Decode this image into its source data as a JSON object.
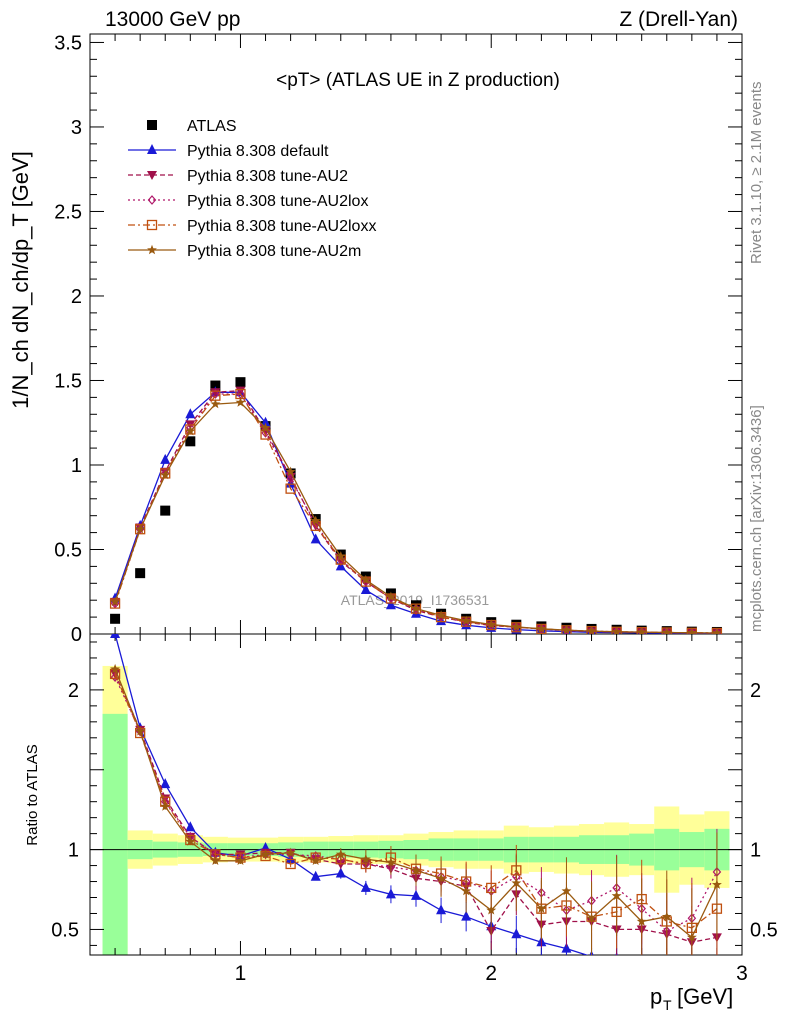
{
  "header": {
    "left": "13000 GeV pp",
    "right": "Z (Drell-Yan)"
  },
  "side_labels": {
    "rivet": "Rivet 3.1.10, ≥ 2.1M events",
    "mcplots": "mcplots.cern.ch [arXiv:1306.3436]"
  },
  "chart_data": [
    {
      "type": "scatter",
      "title": "<pT> (ATLAS UE in Z production)",
      "xlabel": "p_T [GeV]",
      "ylabel": "1/N_ch dN_ch/dp_T [GeV]",
      "ylim": [
        0,
        3.55
      ],
      "xlim": [
        0.4,
        3.0
      ],
      "yticks": [
        "0",
        "0.5",
        "1",
        "1.5",
        "2",
        "2.5",
        "3",
        "3.5"
      ],
      "watermark": "ATLAS_2019_I1736531",
      "legend_position": "top-left",
      "x": [
        0.5,
        0.6,
        0.7,
        0.8,
        0.9,
        1.0,
        1.1,
        1.2,
        1.3,
        1.4,
        1.5,
        1.6,
        1.7,
        1.8,
        1.9,
        2.0,
        2.1,
        2.2,
        2.3,
        2.4,
        2.5,
        2.6,
        2.7,
        2.8,
        2.9
      ],
      "series": [
        {
          "name": "ATLAS",
          "color": "#000000",
          "marker": "square",
          "dash": "none",
          "values": [
            0.09,
            0.36,
            0.73,
            1.14,
            1.47,
            1.49,
            1.23,
            0.95,
            0.68,
            0.47,
            0.34,
            0.24,
            0.17,
            0.12,
            0.09,
            0.07,
            0.055,
            0.045,
            0.037,
            0.03,
            0.025,
            0.02,
            0.017,
            0.014,
            0.012
          ]
        },
        {
          "name": "Pythia 8.308 default",
          "color": "#1a1ad6",
          "marker": "triangle",
          "dash": "solid",
          "values": [
            0.21,
            0.64,
            1.03,
            1.3,
            1.43,
            1.43,
            1.25,
            0.89,
            0.56,
            0.4,
            0.26,
            0.17,
            0.12,
            0.076,
            0.052,
            0.036,
            0.026,
            0.019,
            0.014,
            0.01,
            0.008,
            0.006,
            0.005,
            0.004,
            0.003
          ]
        },
        {
          "name": "Pythia 8.308 tune-AU2",
          "color": "#a0104a",
          "marker": "triangle-down",
          "dash": "dashed",
          "values": [
            0.19,
            0.63,
            0.96,
            1.24,
            1.43,
            1.44,
            1.2,
            0.93,
            0.64,
            0.43,
            0.31,
            0.21,
            0.14,
            0.1,
            0.07,
            0.05,
            0.04,
            0.03,
            0.02,
            0.015,
            0.012,
            0.01,
            0.008,
            0.006,
            0.005
          ]
        },
        {
          "name": "Pythia 8.308 tune-AU2lox",
          "color": "#b0186a",
          "marker": "diamond",
          "dash": "dotted",
          "values": [
            0.18,
            0.62,
            0.95,
            1.22,
            1.42,
            1.42,
            1.19,
            0.92,
            0.65,
            0.44,
            0.31,
            0.21,
            0.15,
            0.1,
            0.072,
            0.052,
            0.04,
            0.03,
            0.022,
            0.017,
            0.013,
            0.011,
            0.009,
            0.007,
            0.006
          ]
        },
        {
          "name": "Pythia 8.308 tune-AU2loxx",
          "color": "#c05010",
          "marker": "square-open",
          "dash": "dashdot",
          "values": [
            0.18,
            0.62,
            0.95,
            1.21,
            1.41,
            1.42,
            1.18,
            0.86,
            0.64,
            0.44,
            0.31,
            0.21,
            0.15,
            0.1,
            0.073,
            0.053,
            0.04,
            0.03,
            0.022,
            0.017,
            0.013,
            0.011,
            0.009,
            0.007,
            0.006
          ]
        },
        {
          "name": "Pythia 8.308 tune-AU2m",
          "color": "#9a5a10",
          "marker": "star",
          "dash": "solid",
          "values": [
            0.19,
            0.62,
            0.94,
            1.2,
            1.36,
            1.37,
            1.22,
            0.96,
            0.67,
            0.46,
            0.32,
            0.22,
            0.15,
            0.11,
            0.078,
            0.056,
            0.042,
            0.031,
            0.023,
            0.017,
            0.013,
            0.011,
            0.009,
            0.007,
            0.006
          ]
        }
      ]
    },
    {
      "type": "line",
      "ylabel": "Ratio to ATLAS",
      "xlabel": "p_T [GeV]",
      "ylim": [
        0.34,
        2.35
      ],
      "xlim": [
        0.4,
        3.0
      ],
      "yticks": [
        "0.5",
        "1",
        "2"
      ],
      "xticks": [
        "1",
        "2",
        "3"
      ],
      "band_inner_halfwidth": [
        0.85,
        0.06,
        0.05,
        0.045,
        0.04,
        0.04,
        0.04,
        0.045,
        0.05,
        0.05,
        0.05,
        0.055,
        0.06,
        0.07,
        0.07,
        0.07,
        0.08,
        0.08,
        0.08,
        0.09,
        0.09,
        0.1,
        0.13,
        0.11,
        0.13
      ],
      "band_outer_halfwidth": [
        1.15,
        0.12,
        0.1,
        0.09,
        0.08,
        0.075,
        0.075,
        0.08,
        0.08,
        0.085,
        0.09,
        0.09,
        0.1,
        0.11,
        0.12,
        0.12,
        0.15,
        0.14,
        0.15,
        0.16,
        0.17,
        0.16,
        0.27,
        0.22,
        0.24
      ],
      "x": [
        0.5,
        0.6,
        0.7,
        0.8,
        0.9,
        1.0,
        1.1,
        1.2,
        1.3,
        1.4,
        1.5,
        1.6,
        1.7,
        1.8,
        1.9,
        2.0,
        2.1,
        2.2,
        2.3,
        2.4,
        2.5,
        2.6,
        2.7,
        2.8,
        2.9
      ],
      "series": [
        {
          "name": "Pythia 8.308 default",
          "color": "#1a1ad6",
          "marker": "triangle",
          "dash": "solid",
          "values": [
            2.35,
            1.76,
            1.41,
            1.14,
            0.98,
            0.96,
            1.01,
            0.94,
            0.83,
            0.85,
            0.76,
            0.72,
            0.71,
            0.62,
            0.58,
            0.52,
            0.47,
            0.42,
            0.38,
            0.33,
            0.32,
            0.3,
            0.29,
            0.29,
            0.25
          ]
        },
        {
          "name": "Pythia 8.308 tune-AU2",
          "color": "#a0104a",
          "marker": "triangle-down",
          "dash": "dashed",
          "values": [
            2.1,
            1.75,
            1.32,
            1.08,
            0.97,
            0.97,
            0.98,
            0.98,
            0.94,
            0.91,
            0.91,
            0.88,
            0.82,
            0.8,
            0.77,
            0.49,
            0.72,
            0.53,
            0.55,
            0.55,
            0.5,
            0.5,
            0.47,
            0.42,
            0.45
          ]
        },
        {
          "name": "Pythia 8.308 tune-AU2lox",
          "color": "#b0186a",
          "marker": "diamond",
          "dash": "dotted",
          "values": [
            2.08,
            1.74,
            1.3,
            1.08,
            0.97,
            0.95,
            0.97,
            0.97,
            0.96,
            0.94,
            0.91,
            0.89,
            0.87,
            0.83,
            0.8,
            0.74,
            0.83,
            0.73,
            0.62,
            0.68,
            0.76,
            0.63,
            0.49,
            0.57,
            0.86
          ]
        },
        {
          "name": "Pythia 8.308 tune-AU2loxx",
          "color": "#c05010",
          "marker": "square-open",
          "dash": "dashdot",
          "values": [
            2.1,
            1.73,
            1.3,
            1.06,
            0.97,
            0.95,
            0.96,
            0.91,
            0.95,
            0.94,
            0.91,
            0.95,
            0.88,
            0.85,
            0.8,
            0.76,
            0.87,
            0.63,
            0.65,
            0.58,
            0.61,
            0.69,
            0.55,
            0.51,
            0.63
          ]
        },
        {
          "name": "Pythia 8.308 tune-AU2m",
          "color": "#9a5a10",
          "marker": "star",
          "dash": "solid",
          "values": [
            2.13,
            1.74,
            1.27,
            1.05,
            0.93,
            0.93,
            0.97,
            0.98,
            0.93,
            0.97,
            0.94,
            0.92,
            0.87,
            0.82,
            0.74,
            0.62,
            0.79,
            0.63,
            0.74,
            0.57,
            0.71,
            0.55,
            0.58,
            0.45,
            0.78
          ]
        }
      ]
    }
  ]
}
